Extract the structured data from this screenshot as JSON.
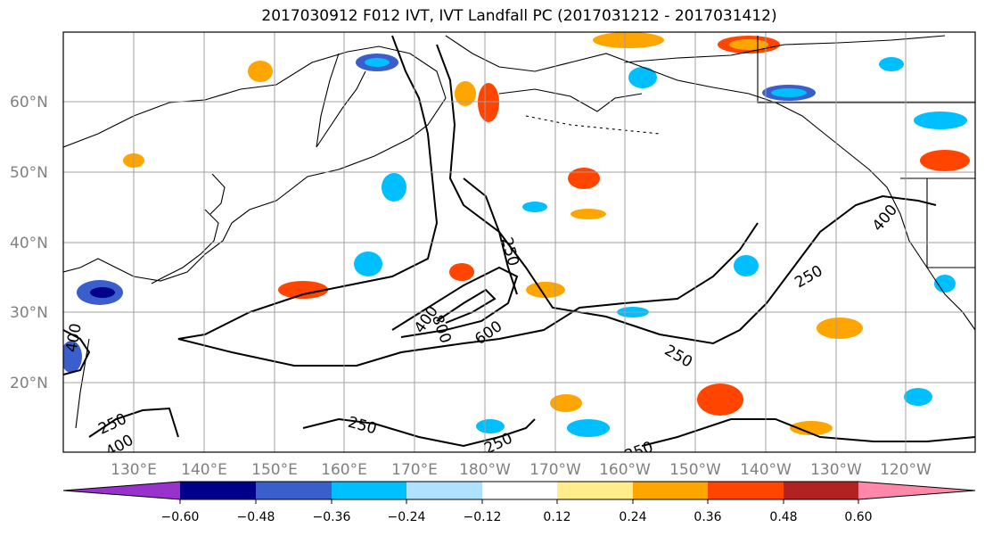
{
  "title": "2017030912 F012 IVT, IVT Landfall PC (2017031212 - 2017031412)",
  "lat_labels": [
    "60°N",
    "50°N",
    "40°N",
    "30°N",
    "20°N"
  ],
  "lon_labels": [
    "130°E",
    "140°E",
    "150°E",
    "160°E",
    "170°E",
    "180°W",
    "170°W",
    "160°W",
    "150°W",
    "140°W",
    "130°W",
    "120°W"
  ],
  "colorbar": {
    "colors": [
      "#9932cc",
      "#00008b",
      "#3a5fcd",
      "#00bfff",
      "#b0e2ff",
      "#ffffff",
      "#ffec8b",
      "#ffa500",
      "#ff4500",
      "#b22222",
      "#ff88aa"
    ],
    "tick_labels": [
      "−0.60",
      "−0.48",
      "−0.36",
      "−0.24",
      "−0.12",
      "0.12",
      "0.24",
      "0.36",
      "0.48",
      "0.60"
    ]
  },
  "contour_labels": [
    "250",
    "400",
    "600",
    "800",
    "400",
    "250",
    "250",
    "250",
    "250",
    "250",
    "400",
    "250",
    "400"
  ],
  "colors": {
    "land_outline": "#000000",
    "grid": "#a0a0a0",
    "contour": "#000000"
  }
}
